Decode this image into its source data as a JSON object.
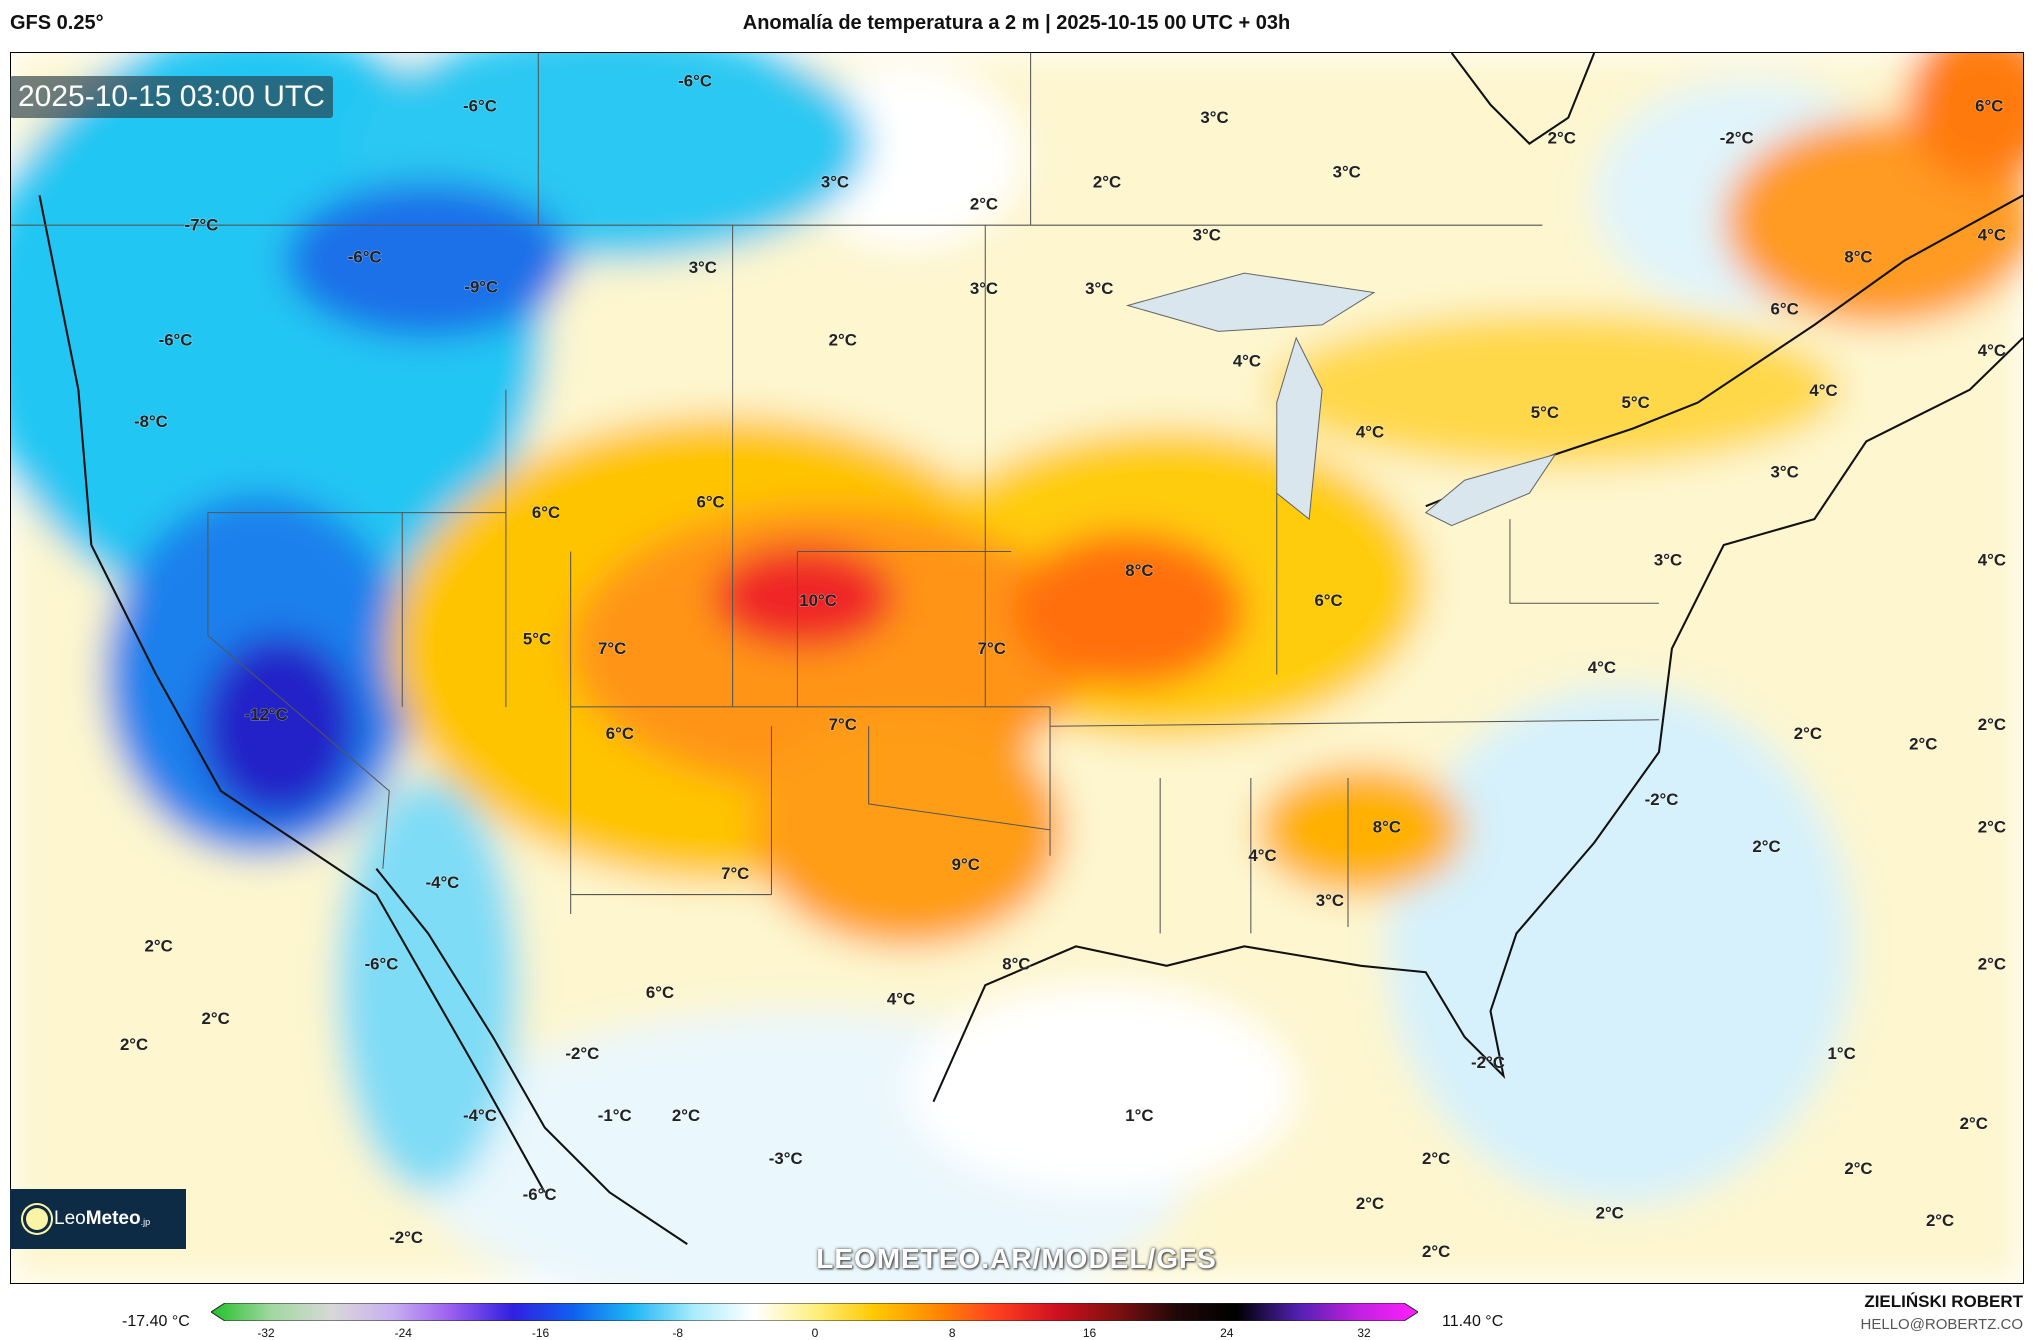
{
  "header": {
    "model": "GFS 0.25°",
    "title": "Anomalía de temperatura a 2 m | 2025-10-15 00 UTC + 03h"
  },
  "map": {
    "valid_time": "2025-10-15 03:00 UTC",
    "watermark_url": "LEOMETEO.AR/MODEL/GFS",
    "logo_text": {
      "light": "Leo",
      "bold": "Meteo",
      "suffix": ".jp"
    },
    "labels": [
      "-6°C",
      "-6°C",
      "3°C",
      "3°C",
      "2°C",
      "2°C",
      "3°C",
      "3°C",
      "-2°C",
      "2°C",
      "6°C",
      "-7°C",
      "-6°C",
      "-9°C",
      "3°C",
      "3°C",
      "3°C",
      "8°C",
      "4°C",
      "6°C",
      "-6°C",
      "2°C",
      "4°C",
      "4°C",
      "-8°C",
      "4°C",
      "5°C",
      "5°C",
      "4°C",
      "3°C",
      "6°C",
      "6°C",
      "8°C",
      "10°C",
      "3°C",
      "4°C",
      "5°C",
      "7°C",
      "7°C",
      "6°C",
      "4°C",
      "-12°C",
      "6°C",
      "7°C",
      "2°C",
      "2°C",
      "2°C",
      "-2°C",
      "8°C",
      "2°C",
      "2°C",
      "9°C",
      "4°C",
      "7°C",
      "-4°C",
      "3°C",
      "2°C",
      "-6°C",
      "8°C",
      "4°C",
      "6°C",
      "2°C",
      "2°C",
      "2°C",
      "-2°C",
      "-2°C",
      "1°C",
      "-1°C",
      "2°C",
      "1°C",
      "-4°C",
      "2°C",
      "-3°C",
      "2°C",
      "2°C",
      "-6°C",
      "2°C",
      "2°C",
      "2°C",
      "-2°C",
      "2°C"
    ]
  },
  "colorbar": {
    "min_label": "-17.40 °C",
    "max_label": "11.40 °C",
    "ticks": [
      "-32",
      "-24",
      "-16",
      "-8",
      "0",
      "8",
      "16",
      "24",
      "32"
    ],
    "colors": [
      "#22c02a",
      "#a0d8a0",
      "#d8d8d8",
      "#c8b0f0",
      "#9a5cf0",
      "#3020e0",
      "#1060f0",
      "#20b8f5",
      "#a8ecfb",
      "#ffffff",
      "#fff080",
      "#ffc800",
      "#ff8a00",
      "#ff4020",
      "#d01020",
      "#801010",
      "#200808",
      "#000000",
      "#5020b0",
      "#c020e0",
      "#ff20ff"
    ]
  },
  "credits": {
    "author": "ZIELIŃSKI ROBERT",
    "email": "HELLO@ROBERTZ.CO"
  }
}
